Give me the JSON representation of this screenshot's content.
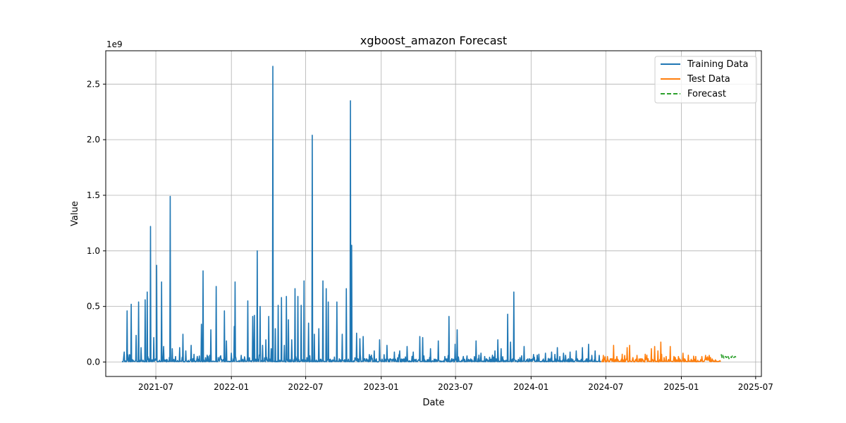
{
  "chart_data": {
    "type": "line",
    "title": "xgboost_amazon Forecast",
    "xlabel": "Date",
    "ylabel": "Value",
    "y_multiplier_label": "1e9",
    "x_range": [
      "2021-03-01",
      "2025-07-15"
    ],
    "ylim": [
      -0.13,
      2.8
    ],
    "x_ticks": [
      "2021-07",
      "2022-01",
      "2022-07",
      "2023-01",
      "2023-07",
      "2024-01",
      "2024-07",
      "2025-01",
      "2025-07"
    ],
    "y_ticks": [
      "0.0",
      "0.5",
      "1.0",
      "1.5",
      "2.0",
      "2.5"
    ],
    "grid": true,
    "legend_position": "top-right",
    "colors": {
      "train": "#1f77b4",
      "test": "#ff7f0e",
      "forecast": "#2ca02c"
    },
    "series": [
      {
        "name": "Training Data",
        "style": "solid",
        "color": "#1f77b4",
        "start": "2021-04-10",
        "end": "2024-06-19",
        "peaks": [
          [
            "2021-04-15",
            0.09
          ],
          [
            "2021-04-22",
            0.46
          ],
          [
            "2021-05-02",
            0.52
          ],
          [
            "2021-05-14",
            0.24
          ],
          [
            "2021-05-20",
            0.54
          ],
          [
            "2021-05-26",
            0.13
          ],
          [
            "2021-06-05",
            0.56
          ],
          [
            "2021-06-10",
            0.63
          ],
          [
            "2021-06-18",
            1.22
          ],
          [
            "2021-06-26",
            0.22
          ],
          [
            "2021-07-03",
            0.87
          ],
          [
            "2021-07-15",
            0.72
          ],
          [
            "2021-07-20",
            0.14
          ],
          [
            "2021-08-05",
            1.49
          ],
          [
            "2021-08-10",
            0.12
          ],
          [
            "2021-08-18",
            0.05
          ],
          [
            "2021-08-28",
            0.13
          ],
          [
            "2021-09-05",
            0.25
          ],
          [
            "2021-09-12",
            0.1
          ],
          [
            "2021-09-25",
            0.15
          ],
          [
            "2021-10-10",
            0.05
          ],
          [
            "2021-10-20",
            0.34
          ],
          [
            "2021-10-24",
            0.82
          ],
          [
            "2021-11-05",
            0.05
          ],
          [
            "2021-11-12",
            0.29
          ],
          [
            "2021-11-25",
            0.68
          ],
          [
            "2021-12-05",
            0.05
          ],
          [
            "2021-12-15",
            0.46
          ],
          [
            "2021-12-20",
            0.19
          ],
          [
            "2022-01-01",
            0.08
          ],
          [
            "2022-01-08",
            0.32
          ],
          [
            "2022-01-10",
            0.72
          ],
          [
            "2022-01-25",
            0.06
          ],
          [
            "2022-02-10",
            0.55
          ],
          [
            "2022-02-22",
            0.41
          ],
          [
            "2022-02-26",
            0.42
          ],
          [
            "2022-03-05",
            1.0
          ],
          [
            "2022-03-12",
            0.5
          ],
          [
            "2022-03-18",
            0.15
          ],
          [
            "2022-03-26",
            0.2
          ],
          [
            "2022-04-02",
            0.41
          ],
          [
            "2022-04-08",
            0.12
          ],
          [
            "2022-04-12",
            2.66
          ],
          [
            "2022-04-18",
            0.3
          ],
          [
            "2022-04-25",
            0.51
          ],
          [
            "2022-05-03",
            0.58
          ],
          [
            "2022-05-10",
            0.15
          ],
          [
            "2022-05-15",
            0.59
          ],
          [
            "2022-05-20",
            0.38
          ],
          [
            "2022-05-28",
            0.2
          ],
          [
            "2022-06-05",
            0.66
          ],
          [
            "2022-06-12",
            0.59
          ],
          [
            "2022-06-20",
            0.51
          ],
          [
            "2022-06-27",
            0.73
          ],
          [
            "2022-07-08",
            0.35
          ],
          [
            "2022-07-17",
            2.04
          ],
          [
            "2022-07-22",
            0.25
          ],
          [
            "2022-08-02",
            0.3
          ],
          [
            "2022-08-12",
            0.73
          ],
          [
            "2022-08-20",
            0.66
          ],
          [
            "2022-08-25",
            0.54
          ],
          [
            "2022-09-05",
            0.02
          ],
          [
            "2022-09-15",
            0.54
          ],
          [
            "2022-09-28",
            0.25
          ],
          [
            "2022-10-08",
            0.66
          ],
          [
            "2022-10-18",
            2.35
          ],
          [
            "2022-10-21",
            1.05
          ],
          [
            "2022-11-02",
            0.26
          ],
          [
            "2022-11-10",
            0.21
          ],
          [
            "2022-11-18",
            0.23
          ],
          [
            "2022-12-05",
            0.05
          ],
          [
            "2022-12-15",
            0.1
          ],
          [
            "2022-12-28",
            0.2
          ],
          [
            "2023-01-15",
            0.15
          ],
          [
            "2023-02-02",
            0.09
          ],
          [
            "2023-02-15",
            0.1
          ],
          [
            "2023-03-05",
            0.14
          ],
          [
            "2023-03-20",
            0.09
          ],
          [
            "2023-04-05",
            0.23
          ],
          [
            "2023-04-12",
            0.22
          ],
          [
            "2023-05-01",
            0.12
          ],
          [
            "2023-05-20",
            0.19
          ],
          [
            "2023-06-05",
            0.05
          ],
          [
            "2023-06-15",
            0.41
          ],
          [
            "2023-06-30",
            0.16
          ],
          [
            "2023-07-05",
            0.29
          ],
          [
            "2023-07-20",
            0.05
          ],
          [
            "2023-08-10",
            0.02
          ],
          [
            "2023-08-20",
            0.19
          ],
          [
            "2023-09-01",
            0.08
          ],
          [
            "2023-09-10",
            0.05
          ],
          [
            "2023-10-05",
            0.1
          ],
          [
            "2023-10-12",
            0.2
          ],
          [
            "2023-10-20",
            0.12
          ],
          [
            "2023-11-05",
            0.43
          ],
          [
            "2023-11-12",
            0.18
          ],
          [
            "2023-11-20",
            0.63
          ],
          [
            "2023-12-05",
            0.04
          ],
          [
            "2023-12-15",
            0.14
          ],
          [
            "2024-01-05",
            0.03
          ],
          [
            "2024-01-20",
            0.07
          ],
          [
            "2024-02-05",
            0.08
          ],
          [
            "2024-02-20",
            0.09
          ],
          [
            "2024-03-05",
            0.13
          ],
          [
            "2024-03-20",
            0.08
          ],
          [
            "2024-04-05",
            0.09
          ],
          [
            "2024-04-20",
            0.1
          ],
          [
            "2024-05-05",
            0.13
          ],
          [
            "2024-05-20",
            0.16
          ],
          [
            "2024-06-05",
            0.1
          ],
          [
            "2024-06-15",
            0.06
          ]
        ]
      },
      {
        "name": "Test Data",
        "style": "solid",
        "color": "#ff7f0e",
        "start": "2024-06-20",
        "end": "2025-04-07",
        "peaks": [
          [
            "2024-06-25",
            0.06
          ],
          [
            "2024-07-05",
            0.05
          ],
          [
            "2024-07-12",
            0.03
          ],
          [
            "2024-07-20",
            0.15
          ],
          [
            "2024-07-28",
            0.05
          ],
          [
            "2024-08-10",
            0.07
          ],
          [
            "2024-08-22",
            0.13
          ],
          [
            "2024-08-28",
            0.15
          ],
          [
            "2024-09-05",
            0.04
          ],
          [
            "2024-09-15",
            0.06
          ],
          [
            "2024-09-25",
            0.03
          ],
          [
            "2024-10-05",
            0.07
          ],
          [
            "2024-10-12",
            0.03
          ],
          [
            "2024-10-20",
            0.12
          ],
          [
            "2024-10-28",
            0.14
          ],
          [
            "2024-11-05",
            0.1
          ],
          [
            "2024-11-12",
            0.18
          ],
          [
            "2024-11-20",
            0.04
          ],
          [
            "2024-11-25",
            0.05
          ],
          [
            "2024-12-05",
            0.14
          ],
          [
            "2024-12-15",
            0.02
          ],
          [
            "2024-12-25",
            0.05
          ],
          [
            "2025-01-05",
            0.08
          ],
          [
            "2025-01-20",
            0.01
          ],
          [
            "2025-02-05",
            0.05
          ],
          [
            "2025-02-20",
            0.05
          ],
          [
            "2025-03-01",
            0.06
          ],
          [
            "2025-03-10",
            0.06
          ],
          [
            "2025-03-25",
            0.02
          ]
        ]
      },
      {
        "name": "Forecast",
        "style": "dashed",
        "color": "#2ca02c",
        "start": "2025-04-08",
        "end": "2025-05-15",
        "values": [
          [
            "2025-04-08",
            0.07
          ],
          [
            "2025-04-10",
            0.04
          ],
          [
            "2025-04-12",
            0.06
          ],
          [
            "2025-04-15",
            0.03
          ],
          [
            "2025-04-18",
            0.05
          ],
          [
            "2025-04-21",
            0.04
          ],
          [
            "2025-04-24",
            0.06
          ],
          [
            "2025-04-27",
            0.03
          ],
          [
            "2025-04-30",
            0.05
          ],
          [
            "2025-05-03",
            0.04
          ],
          [
            "2025-05-06",
            0.06
          ],
          [
            "2025-05-09",
            0.04
          ],
          [
            "2025-05-12",
            0.05
          ],
          [
            "2025-05-15",
            0.04
          ]
        ]
      }
    ]
  }
}
